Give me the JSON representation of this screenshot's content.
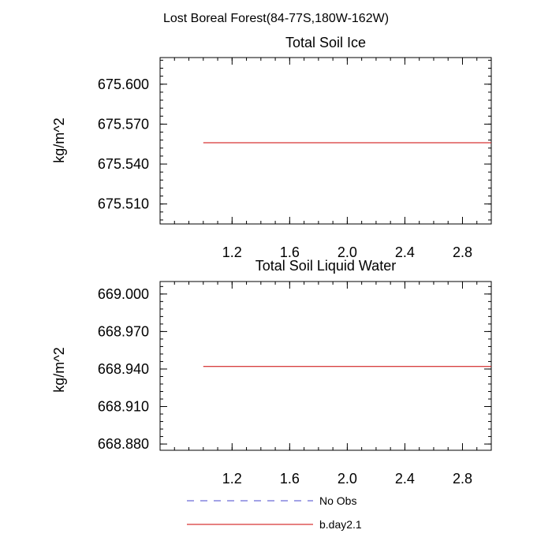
{
  "figure": {
    "suptitle": "Lost Boreal Forest(84-77S,180W-162W)"
  },
  "chart_data": [
    {
      "type": "line",
      "title": "Total Soil Ice",
      "ylabel": "kg/m^2",
      "xlabel": "",
      "xlim": [
        0.7,
        3.0
      ],
      "ylim": [
        675.495,
        675.62
      ],
      "xticks": [
        1.2,
        1.6,
        2.0,
        2.4,
        2.8
      ],
      "xtick_labels": [
        "1.2",
        "1.6",
        "2.0",
        "2.4",
        "2.8"
      ],
      "yticks": [
        675.6,
        675.57,
        675.54,
        675.51
      ],
      "ytick_labels": [
        "675.600",
        "675.570",
        "675.540",
        "675.510"
      ],
      "grid": false,
      "series": [
        {
          "name": "b.day2.1",
          "color": "#cc0000",
          "style": "solid",
          "x": [
            1.0,
            3.0
          ],
          "y": [
            675.556,
            675.556
          ]
        }
      ]
    },
    {
      "type": "line",
      "title": "Total Soil Liquid Water",
      "ylabel": "kg/m^2",
      "xlabel": "",
      "xlim": [
        0.7,
        3.0
      ],
      "ylim": [
        668.875,
        669.01
      ],
      "xticks": [
        1.2,
        1.6,
        2.0,
        2.4,
        2.8
      ],
      "xtick_labels": [
        "1.2",
        "1.6",
        "2.0",
        "2.4",
        "2.8"
      ],
      "yticks": [
        669.0,
        668.97,
        668.94,
        668.91,
        668.88
      ],
      "ytick_labels": [
        "669.000",
        "668.970",
        "668.940",
        "668.910",
        "668.880"
      ],
      "grid": false,
      "series": [
        {
          "name": "b.day2.1",
          "color": "#cc0000",
          "style": "solid",
          "x": [
            1.0,
            3.0
          ],
          "y": [
            668.942,
            668.942
          ]
        }
      ]
    }
  ],
  "legend": {
    "placement": "bottom-center",
    "entries": [
      {
        "label": "No Obs",
        "color": "#4444cc",
        "style": "dashed"
      },
      {
        "label": "b.day2.1",
        "color": "#cc0000",
        "style": "solid"
      }
    ]
  }
}
